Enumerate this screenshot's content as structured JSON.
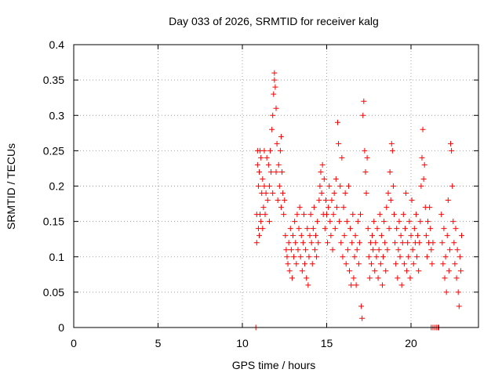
{
  "chart_data": {
    "type": "scatter",
    "title": "Day 033 of 2026, SRMTID for receiver kalg",
    "xlabel": "GPS time / hours",
    "ylabel": "SRMTID / TECUs",
    "xlim": [
      0,
      24
    ],
    "ylim": [
      0,
      0.4
    ],
    "x_ticks": [
      0,
      5,
      10,
      15,
      20
    ],
    "x_tick_labels": [
      "0",
      "5",
      "10",
      "15",
      "20"
    ],
    "y_ticks": [
      0,
      0.05,
      0.1,
      0.15,
      0.2,
      0.25,
      0.3,
      0.35,
      0.4
    ],
    "y_tick_labels": [
      "0",
      "0.05",
      "0.1",
      "0.15",
      "0.2",
      "0.25",
      "0.3",
      "0.35",
      "0.4"
    ],
    "grid": true,
    "series": [
      {
        "name": "SRMTID",
        "marker": "plus",
        "color": "#ff0000",
        "points": [
          [
            10.8,
            0.0
          ],
          [
            10.85,
            0.12
          ],
          [
            10.85,
            0.16
          ],
          [
            10.9,
            0.23
          ],
          [
            10.9,
            0.25
          ],
          [
            10.95,
            0.14
          ],
          [
            10.95,
            0.2
          ],
          [
            11.0,
            0.13
          ],
          [
            11.0,
            0.22
          ],
          [
            11.05,
            0.16
          ],
          [
            11.05,
            0.25
          ],
          [
            11.1,
            0.15
          ],
          [
            11.1,
            0.24
          ],
          [
            11.15,
            0.19
          ],
          [
            11.2,
            0.14
          ],
          [
            11.2,
            0.21
          ],
          [
            11.25,
            0.17
          ],
          [
            11.3,
            0.2
          ],
          [
            11.3,
            0.25
          ],
          [
            11.35,
            0.16
          ],
          [
            11.4,
            0.19
          ],
          [
            11.45,
            0.24
          ],
          [
            11.5,
            0.18
          ],
          [
            11.55,
            0.23
          ],
          [
            11.6,
            0.15
          ],
          [
            11.6,
            0.2
          ],
          [
            11.65,
            0.25
          ],
          [
            11.7,
            0.22
          ],
          [
            11.75,
            0.28
          ],
          [
            11.8,
            0.3
          ],
          [
            11.8,
            0.19
          ],
          [
            11.85,
            0.33
          ],
          [
            11.9,
            0.36
          ],
          [
            11.9,
            0.35
          ],
          [
            11.95,
            0.34
          ],
          [
            12.0,
            0.31
          ],
          [
            12.0,
            0.22
          ],
          [
            12.05,
            0.26
          ],
          [
            12.1,
            0.18
          ],
          [
            12.15,
            0.23
          ],
          [
            12.2,
            0.2
          ],
          [
            12.25,
            0.25
          ],
          [
            12.3,
            0.27
          ],
          [
            12.3,
            0.17
          ],
          [
            12.35,
            0.22
          ],
          [
            12.4,
            0.19
          ],
          [
            12.45,
            0.16
          ],
          [
            12.5,
            0.18
          ],
          [
            12.55,
            0.13
          ],
          [
            12.6,
            0.11
          ],
          [
            12.65,
            0.1
          ],
          [
            12.7,
            0.09
          ],
          [
            12.75,
            0.12
          ],
          [
            12.8,
            0.08
          ],
          [
            12.85,
            0.14
          ],
          [
            12.9,
            0.11
          ],
          [
            12.95,
            0.07
          ],
          [
            13.0,
            0.13
          ],
          [
            13.05,
            0.1
          ],
          [
            13.1,
            0.15
          ],
          [
            13.15,
            0.12
          ],
          [
            13.2,
            0.09
          ],
          [
            13.25,
            0.16
          ],
          [
            13.3,
            0.11
          ],
          [
            13.35,
            0.14
          ],
          [
            13.4,
            0.17
          ],
          [
            13.45,
            0.1
          ],
          [
            13.5,
            0.13
          ],
          [
            13.55,
            0.08
          ],
          [
            13.6,
            0.12
          ],
          [
            13.65,
            0.16
          ],
          [
            13.7,
            0.09
          ],
          [
            13.75,
            0.11
          ],
          [
            13.8,
            0.07
          ],
          [
            13.85,
            0.14
          ],
          [
            13.9,
            0.06
          ],
          [
            13.95,
            0.1
          ],
          [
            14.0,
            0.13
          ],
          [
            14.05,
            0.16
          ],
          [
            14.1,
            0.12
          ],
          [
            14.15,
            0.09
          ],
          [
            14.2,
            0.14
          ],
          [
            14.25,
            0.17
          ],
          [
            14.3,
            0.11
          ],
          [
            14.35,
            0.13
          ],
          [
            14.4,
            0.1
          ],
          [
            14.45,
            0.15
          ],
          [
            14.5,
            0.12
          ],
          [
            14.55,
            0.18
          ],
          [
            14.6,
            0.2
          ],
          [
            14.65,
            0.22
          ],
          [
            14.7,
            0.19
          ],
          [
            14.75,
            0.23
          ],
          [
            14.8,
            0.16
          ],
          [
            14.85,
            0.21
          ],
          [
            14.9,
            0.14
          ],
          [
            14.95,
            0.18
          ],
          [
            15.0,
            0.16
          ],
          [
            15.05,
            0.12
          ],
          [
            15.1,
            0.17
          ],
          [
            15.15,
            0.2
          ],
          [
            15.2,
            0.15
          ],
          [
            15.25,
            0.13
          ],
          [
            15.3,
            0.18
          ],
          [
            15.35,
            0.11
          ],
          [
            15.4,
            0.16
          ],
          [
            15.45,
            0.19
          ],
          [
            15.5,
            0.14
          ],
          [
            15.55,
            0.21
          ],
          [
            15.6,
            0.17
          ],
          [
            15.65,
            0.29
          ],
          [
            15.7,
            0.26
          ],
          [
            15.75,
            0.15
          ],
          [
            15.8,
            0.2
          ],
          [
            15.85,
            0.12
          ],
          [
            15.9,
            0.24
          ],
          [
            15.95,
            0.1
          ],
          [
            16.0,
            0.17
          ],
          [
            16.05,
            0.13
          ],
          [
            16.1,
            0.19
          ],
          [
            16.15,
            0.09
          ],
          [
            16.2,
            0.15
          ],
          [
            16.25,
            0.11
          ],
          [
            16.3,
            0.2
          ],
          [
            16.35,
            0.08
          ],
          [
            16.4,
            0.14
          ],
          [
            16.45,
            0.06
          ],
          [
            16.5,
            0.12
          ],
          [
            16.55,
            0.16
          ],
          [
            16.6,
            0.07
          ],
          [
            16.65,
            0.1
          ],
          [
            16.7,
            0.13
          ],
          [
            16.75,
            0.06
          ],
          [
            16.8,
            0.11
          ],
          [
            16.85,
            0.15
          ],
          [
            16.9,
            0.09
          ],
          [
            16.95,
            0.12
          ],
          [
            17.0,
            0.16
          ],
          [
            17.05,
            0.03
          ],
          [
            17.1,
            0.013
          ],
          [
            17.15,
            0.3
          ],
          [
            17.2,
            0.32
          ],
          [
            17.25,
            0.25
          ],
          [
            17.3,
            0.22
          ],
          [
            17.35,
            0.19
          ],
          [
            17.4,
            0.24
          ],
          [
            17.45,
            0.14
          ],
          [
            17.5,
            0.1
          ],
          [
            17.55,
            0.07
          ],
          [
            17.6,
            0.12
          ],
          [
            17.65,
            0.09
          ],
          [
            17.7,
            0.13
          ],
          [
            17.75,
            0.11
          ],
          [
            17.8,
            0.15
          ],
          [
            17.85,
            0.08
          ],
          [
            17.9,
            0.12
          ],
          [
            17.95,
            0.1
          ],
          [
            18.0,
            0.14
          ],
          [
            18.05,
            0.07
          ],
          [
            18.1,
            0.11
          ],
          [
            18.15,
            0.16
          ],
          [
            18.2,
            0.09
          ],
          [
            18.25,
            0.13
          ],
          [
            18.3,
            0.06
          ],
          [
            18.35,
            0.1
          ],
          [
            18.4,
            0.15
          ],
          [
            18.45,
            0.12
          ],
          [
            18.5,
            0.08
          ],
          [
            18.55,
            0.17
          ],
          [
            18.6,
            0.11
          ],
          [
            18.65,
            0.19
          ],
          [
            18.7,
            0.14
          ],
          [
            18.75,
            0.22
          ],
          [
            18.8,
            0.18
          ],
          [
            18.85,
            0.26
          ],
          [
            18.9,
            0.25
          ],
          [
            18.95,
            0.2
          ],
          [
            19.0,
            0.16
          ],
          [
            19.05,
            0.12
          ],
          [
            19.1,
            0.09
          ],
          [
            19.15,
            0.14
          ],
          [
            19.2,
            0.07
          ],
          [
            19.25,
            0.11
          ],
          [
            19.3,
            0.15
          ],
          [
            19.35,
            0.1
          ],
          [
            19.4,
            0.13
          ],
          [
            19.45,
            0.06
          ],
          [
            19.5,
            0.12
          ],
          [
            19.55,
            0.16
          ],
          [
            19.6,
            0.09
          ],
          [
            19.65,
            0.14
          ],
          [
            19.7,
            0.19
          ],
          [
            19.75,
            0.08
          ],
          [
            19.8,
            0.12
          ],
          [
            19.85,
            0.1
          ],
          [
            19.9,
            0.15
          ],
          [
            19.95,
            0.07
          ],
          [
            20.0,
            0.13
          ],
          [
            20.05,
            0.18
          ],
          [
            20.1,
            0.11
          ],
          [
            20.15,
            0.09
          ],
          [
            20.2,
            0.14
          ],
          [
            20.25,
            0.12
          ],
          [
            20.3,
            0.16
          ],
          [
            20.35,
            0.1
          ],
          [
            20.4,
            0.13
          ],
          [
            20.45,
            0.08
          ],
          [
            20.5,
            0.12
          ],
          [
            20.55,
            0.15
          ],
          [
            20.6,
            0.2
          ],
          [
            20.65,
            0.24
          ],
          [
            20.7,
            0.28
          ],
          [
            20.75,
            0.21
          ],
          [
            20.8,
            0.23
          ],
          [
            20.85,
            0.17
          ],
          [
            20.9,
            0.13
          ],
          [
            20.95,
            0.1
          ],
          [
            21.0,
            0.15
          ],
          [
            21.05,
            0.12
          ],
          [
            21.1,
            0.17
          ],
          [
            21.15,
            0.14
          ],
          [
            21.2,
            0.11
          ],
          [
            21.25,
            0.09
          ],
          [
            21.3,
            0.12
          ],
          [
            21.2,
            0.0
          ],
          [
            21.3,
            0.0
          ],
          [
            21.4,
            0.0
          ],
          [
            21.5,
            0.0
          ],
          [
            21.6,
            0.0
          ],
          [
            21.65,
            0.0
          ],
          [
            21.8,
            0.16
          ],
          [
            21.85,
            0.12
          ],
          [
            21.9,
            0.09
          ],
          [
            21.95,
            0.14
          ],
          [
            22.0,
            0.07
          ],
          [
            22.05,
            0.1
          ],
          [
            22.1,
            0.05
          ],
          [
            22.15,
            0.13
          ],
          [
            22.2,
            0.18
          ],
          [
            22.25,
            0.08
          ],
          [
            22.3,
            0.11
          ],
          [
            22.35,
            0.26
          ],
          [
            22.4,
            0.25
          ],
          [
            22.45,
            0.2
          ],
          [
            22.5,
            0.15
          ],
          [
            22.55,
            0.12
          ],
          [
            22.6,
            0.09
          ],
          [
            22.65,
            0.14
          ],
          [
            22.7,
            0.07
          ],
          [
            22.75,
            0.11
          ],
          [
            22.8,
            0.05
          ],
          [
            22.85,
            0.03
          ],
          [
            22.9,
            0.1
          ],
          [
            22.95,
            0.08
          ],
          [
            23.0,
            0.13
          ]
        ]
      }
    ]
  }
}
